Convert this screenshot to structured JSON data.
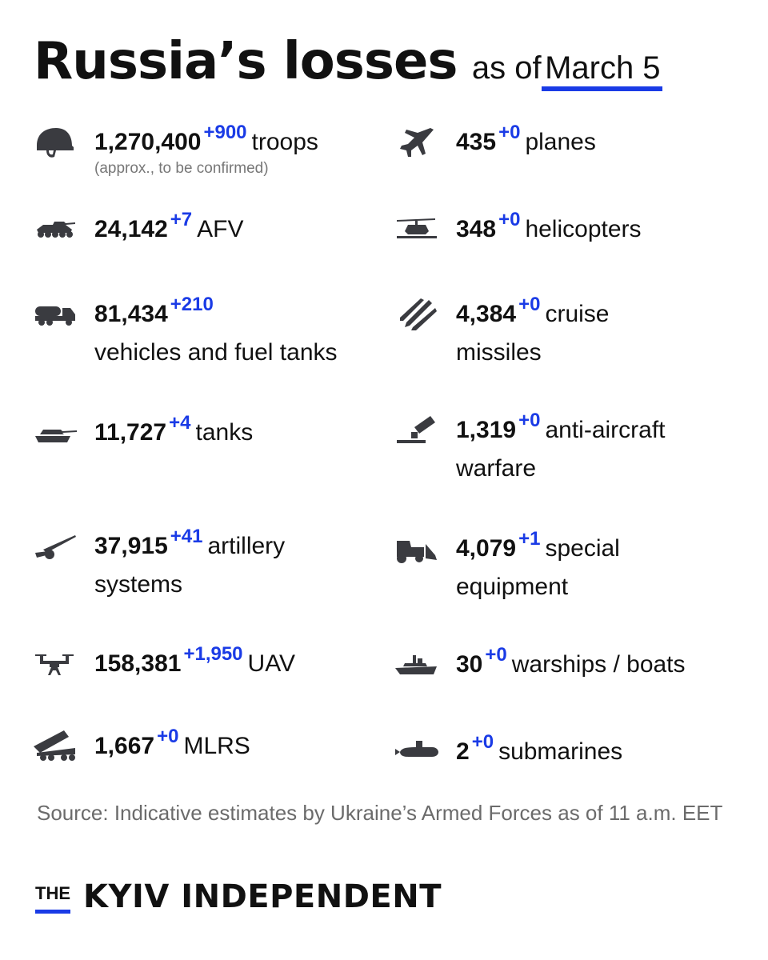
{
  "header": {
    "title": "Russia’s losses",
    "as_of": "as of",
    "date": "March 5"
  },
  "colors": {
    "accent": "#1a3be6",
    "icon": "#3a3b40",
    "source": "#6b6b6b"
  },
  "items": [
    {
      "icon": "helmet-icon",
      "value": "1,270,400",
      "delta": "+900",
      "label": "troops",
      "note": "(approx., to be confirmed)"
    },
    {
      "icon": "plane-icon",
      "value": "435",
      "delta": "+0",
      "label": "planes"
    },
    {
      "icon": "afv-icon",
      "value": "24,142",
      "delta": "+7",
      "label": "AFV"
    },
    {
      "icon": "helicopter-icon",
      "value": "348",
      "delta": "+0",
      "label": "helicopters"
    },
    {
      "icon": "fuel-truck-icon",
      "value": "81,434",
      "delta": "+210",
      "label": "",
      "label2": "vehicles and fuel tanks"
    },
    {
      "icon": "missile-icon",
      "value": "4,384",
      "delta": "+0",
      "label": "cruise",
      "label2": "missiles"
    },
    {
      "icon": "tank-icon",
      "value": "11,727",
      "delta": "+4",
      "label": "tanks"
    },
    {
      "icon": "anti-aircraft-icon",
      "value": "1,319",
      "delta": "+0",
      "label": "anti-aircraft",
      "label2": "warfare"
    },
    {
      "icon": "artillery-icon",
      "value": "37,915",
      "delta": "+41",
      "label": "artillery",
      "label2": "systems"
    },
    {
      "icon": "bulldozer-icon",
      "value": "4,079",
      "delta": "+1",
      "label": "special",
      "label2": "equipment"
    },
    {
      "icon": "drone-icon",
      "value": "158,381",
      "delta": "+1,950",
      "label": "UAV"
    },
    {
      "icon": "warship-icon",
      "value": "30",
      "delta": "+0",
      "label": "warships / boats"
    },
    {
      "icon": "mlrs-icon",
      "value": "1,667",
      "delta": "+0",
      "label": "MLRS"
    },
    {
      "icon": "submarine-icon",
      "value": "2",
      "delta": "+0",
      "label": "submarines"
    }
  ],
  "source": "Source: Indicative estimates by Ukraine’s Armed Forces as of 11 a.m. EET",
  "logo": {
    "the": "THE",
    "name": "KYIV INDEPENDENT"
  }
}
